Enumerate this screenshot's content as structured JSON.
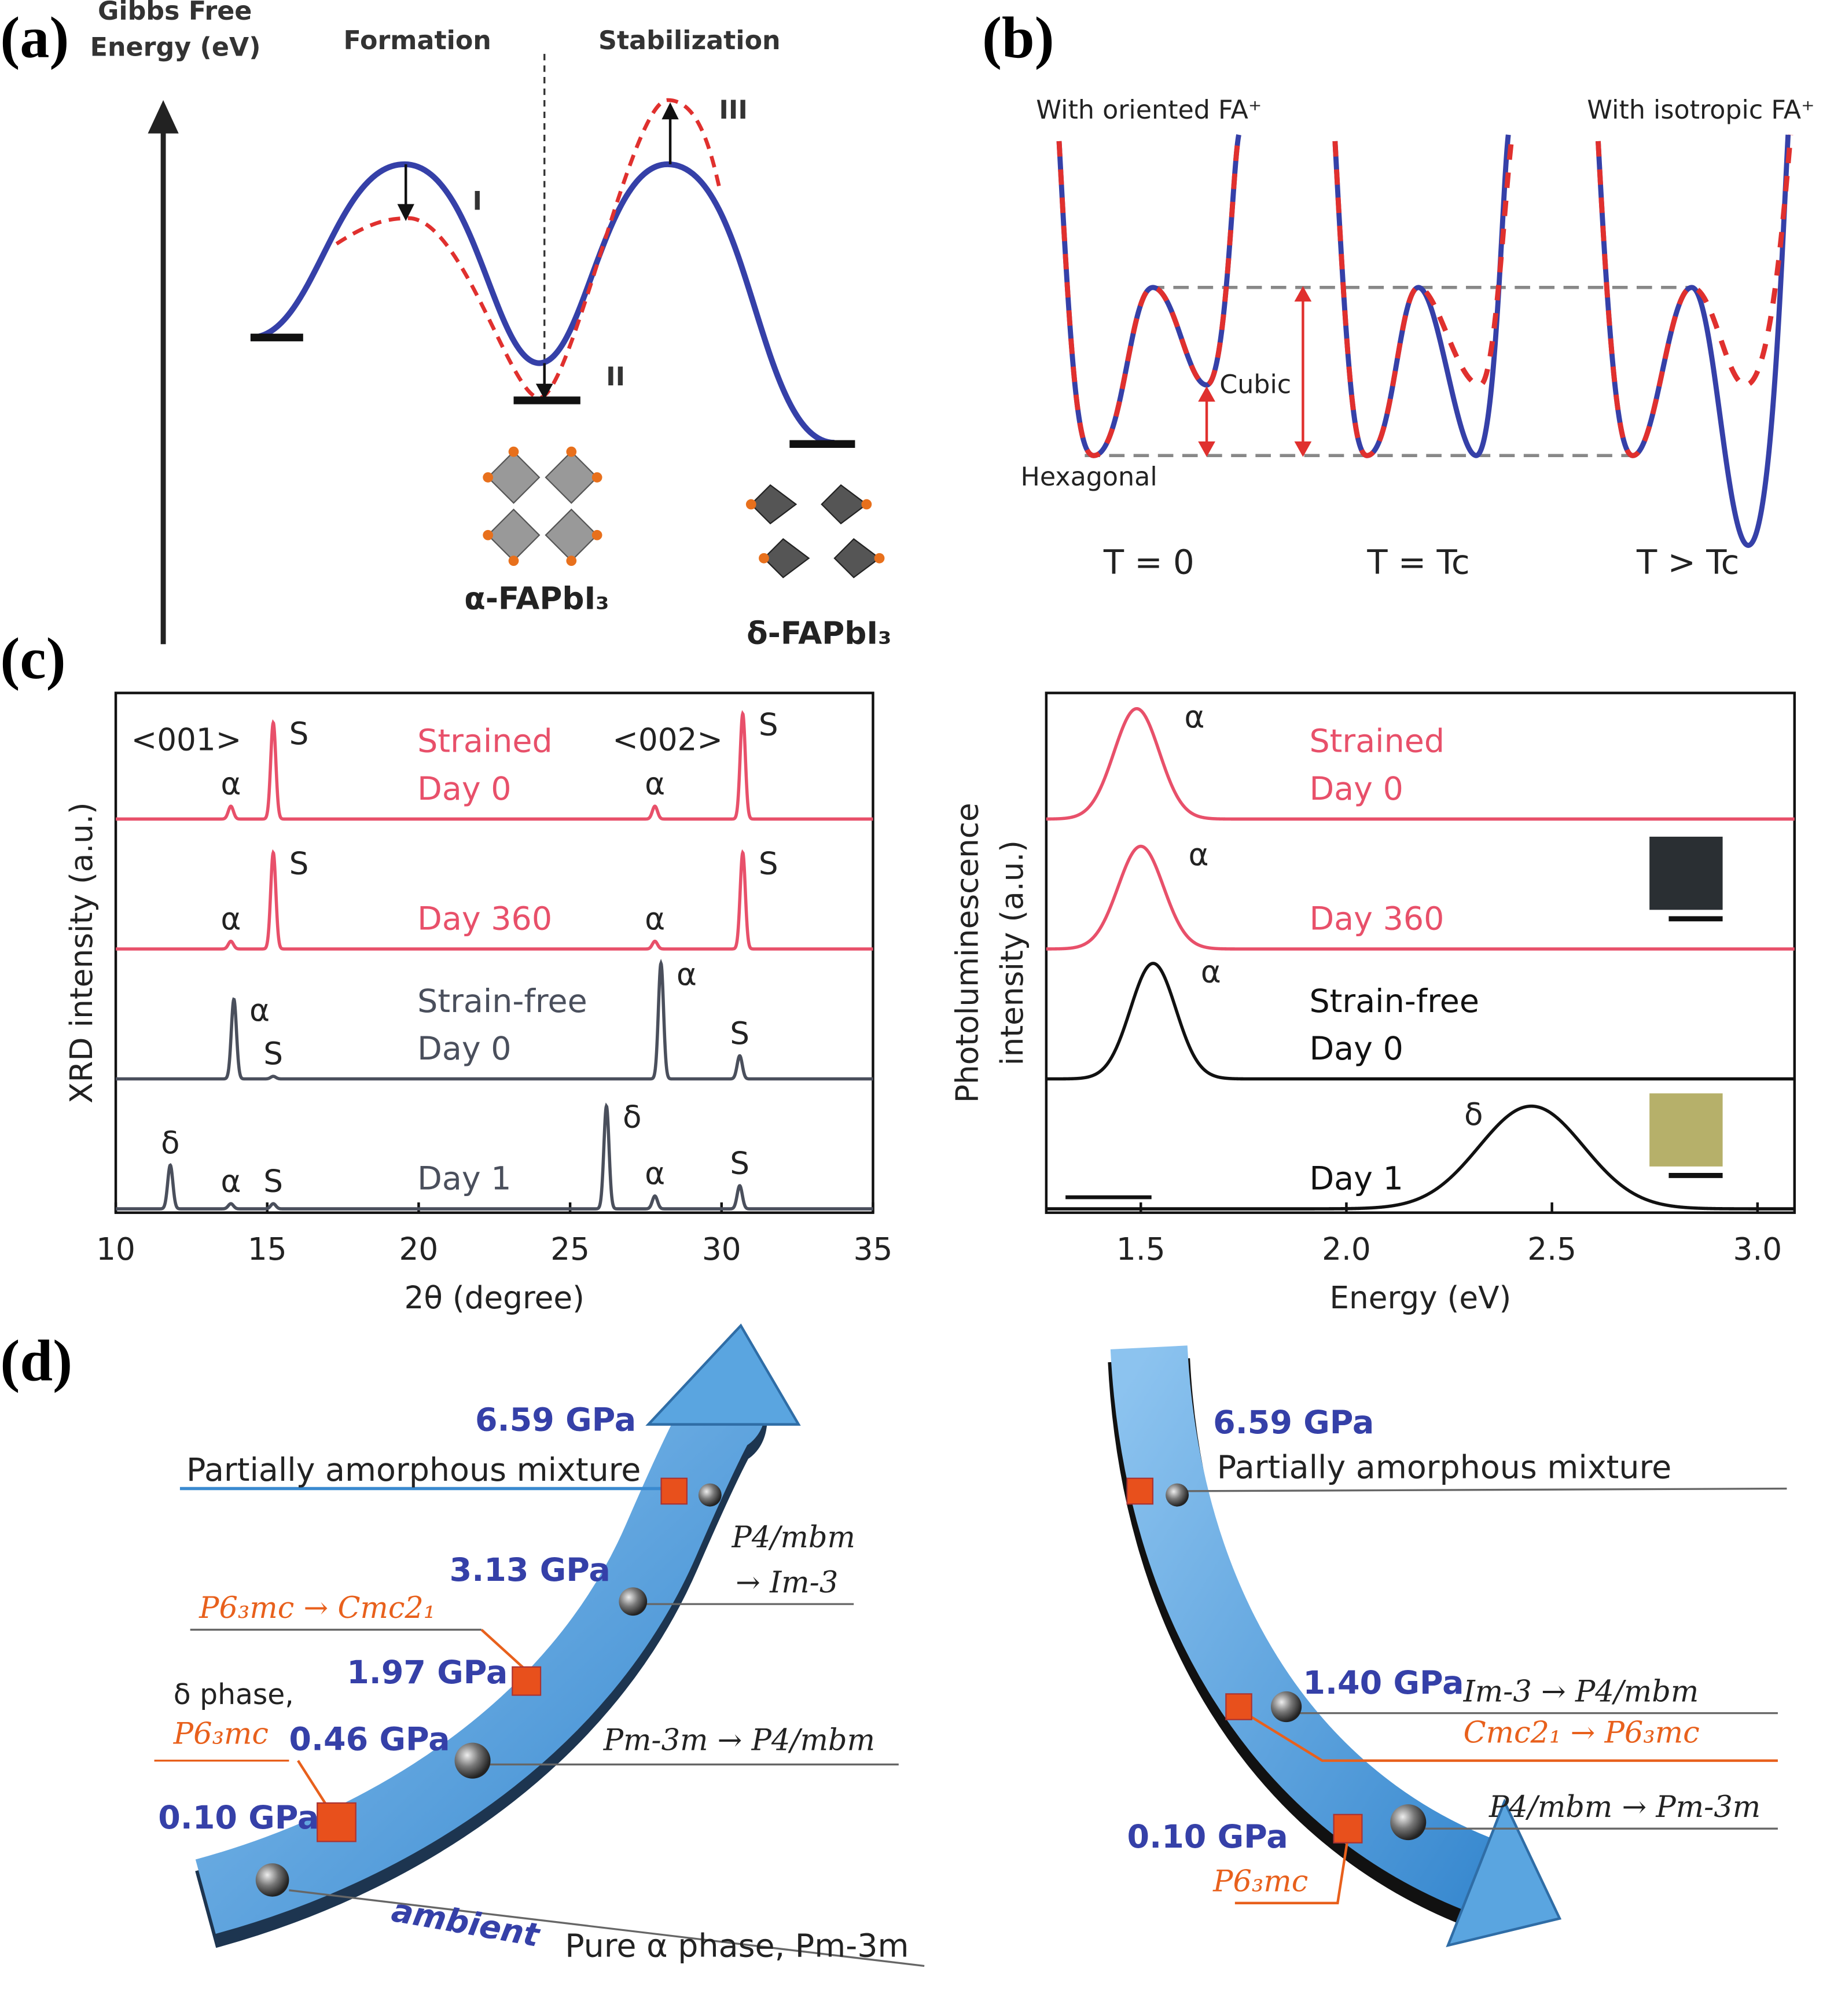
{
  "panel_a": {
    "label": "(a)",
    "y_axis_label": [
      "Gibbs Free",
      "Energy (eV)"
    ],
    "stages": [
      "Formation",
      "Stabilization"
    ],
    "steps": [
      "I",
      "II",
      "III"
    ],
    "phases": [
      "α-FAPbI₃",
      "δ-FAPbI₃"
    ]
  },
  "panel_b": {
    "label": "(b)",
    "titles": [
      "With oriented FA⁺",
      "With isotropic FA⁺"
    ],
    "states": [
      "Cubic",
      "Hexagonal"
    ],
    "temperatures": [
      "T = 0",
      "T = Tc",
      "T > Tc"
    ]
  },
  "panel_c": {
    "label": "(c)"
  },
  "chart_data": [
    {
      "type": "line",
      "xlabel": "2θ (degree)",
      "ylabel": "XRD intensity (a.u.)",
      "xlim": [
        10,
        35
      ],
      "xticks": [
        10,
        15,
        20,
        25,
        30,
        35
      ],
      "annotations": [
        "<001>",
        "<002>"
      ],
      "series": [
        {
          "label_lines": [
            "Strained",
            "Day 0"
          ],
          "color": "#e8506a",
          "fwhm": 0.2,
          "peaks": [
            {
              "position": 13.8,
              "height": 0.1,
              "label": "α"
            },
            {
              "position": 15.2,
              "height": 0.75,
              "label": "S"
            },
            {
              "position": 27.8,
              "height": 0.1,
              "label": "α"
            },
            {
              "position": 30.7,
              "height": 0.82,
              "label": "S"
            }
          ]
        },
        {
          "label_lines": [
            "Day 360"
          ],
          "color": "#e8506a",
          "fwhm": 0.2,
          "peaks": [
            {
              "position": 13.8,
              "height": 0.06,
              "label": "α"
            },
            {
              "position": 15.2,
              "height": 0.75,
              "label": "S"
            },
            {
              "position": 27.8,
              "height": 0.06,
              "label": "α"
            },
            {
              "position": 30.7,
              "height": 0.75,
              "label": "S"
            }
          ]
        },
        {
          "label_lines": [
            "Strain-free",
            "Day 0"
          ],
          "color": "#4a4f5c",
          "fwhm": 0.2,
          "peaks": [
            {
              "position": 13.9,
              "height": 0.62,
              "label": "α"
            },
            {
              "position": 15.2,
              "height": 0.02,
              "label": "S"
            },
            {
              "position": 28.0,
              "height": 0.9,
              "label": "α"
            },
            {
              "position": 30.6,
              "height": 0.18,
              "label": "S"
            }
          ]
        },
        {
          "label_lines": [
            "Day 1"
          ],
          "color": "#4a4f5c",
          "fwhm": 0.2,
          "peaks": [
            {
              "position": 11.8,
              "height": 0.34,
              "label": "δ"
            },
            {
              "position": 13.8,
              "height": 0.04,
              "label": "α"
            },
            {
              "position": 15.2,
              "height": 0.04,
              "label": "S"
            },
            {
              "position": 26.2,
              "height": 0.8,
              "label": "δ"
            },
            {
              "position": 27.8,
              "height": 0.1,
              "label": "α"
            },
            {
              "position": 30.6,
              "height": 0.18,
              "label": "S"
            }
          ]
        }
      ]
    },
    {
      "type": "line",
      "xlabel": "Energy (eV)",
      "ylabel": [
        "Photoluminescence",
        "intensity (a.u.)"
      ],
      "xlim": [
        1.27,
        3.09
      ],
      "xticks": [
        1.5,
        {
          "value": 2,
          "label": "2.0"
        },
        2.5,
        {
          "value": 3,
          "label": "3.0"
        }
      ],
      "series": [
        {
          "label_lines": [
            "Strained",
            "Day 0"
          ],
          "color": "#e8506a",
          "fwhm": 0.13,
          "peaks": [
            {
              "position": 1.49,
              "height": 0.86,
              "label": "α"
            }
          ]
        },
        {
          "label_lines": [
            "Day 360"
          ],
          "color": "#e8506a",
          "fwhm": 0.13,
          "peaks": [
            {
              "position": 1.5,
              "height": 0.8,
              "label": "α"
            }
          ]
        },
        {
          "label_lines": [
            "Strain-free",
            "Day 0"
          ],
          "color": "#111111",
          "fwhm": 0.13,
          "peaks": [
            {
              "position": 1.53,
              "height": 0.9,
              "label": "α"
            }
          ]
        },
        {
          "label_lines": [
            "Day 1"
          ],
          "color": "#111111",
          "fwhm": 0.3,
          "peaks": [
            {
              "position": 2.45,
              "height": 0.8,
              "label": "δ"
            }
          ]
        }
      ]
    }
  ],
  "panel_d": {
    "label": "(d)",
    "compression": {
      "pressures": [
        "6.59 GPa",
        "3.13 GPa",
        "1.97 GPa",
        "0.46 GPa",
        "0.10 GPa"
      ],
      "notes": [
        "Partially amorphous mixture",
        "P4/mbm",
        "→ Im-3",
        "P6₃mc → Cmc2₁",
        "δ phase,",
        "P6₃mc",
        "Pm-3m → P4/mbm",
        "ambient",
        "Pure α phase, Pm-3m"
      ]
    },
    "decompression": {
      "pressures": [
        "6.59 GPa",
        "1.40 GPa",
        "0.10 GPa"
      ],
      "notes": [
        "Partially amorphous mixture",
        "Im-3 → P4/mbm",
        "Cmc2₁ → P6₃mc",
        "P4/mbm → Pm-3m",
        "P6₃mc"
      ]
    }
  }
}
